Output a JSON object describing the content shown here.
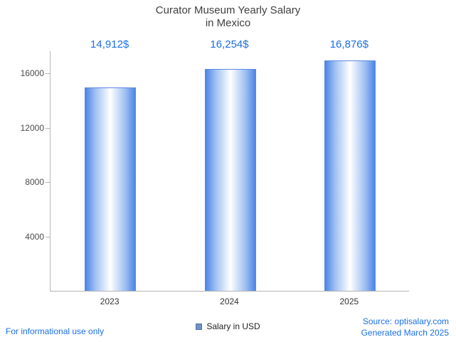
{
  "title": {
    "line1": "Curator Museum Yearly Salary",
    "line2": "in Mexico"
  },
  "chart_data": {
    "type": "bar",
    "title": "Curator Museum Yearly Salary in Mexico",
    "categories": [
      "2023",
      "2024",
      "2025"
    ],
    "values": [
      14912,
      16254,
      16876
    ],
    "value_labels": [
      "14,912$",
      "16,254$",
      "16,876$"
    ],
    "series_name": "Salary in USD",
    "xlabel": "",
    "ylabel": "",
    "ylim": [
      0,
      17600
    ],
    "yticks": [
      4000,
      8000,
      12000,
      16000
    ],
    "grid": false,
    "legend_position": "bottom"
  },
  "legend": {
    "label": "Salary in USD"
  },
  "footer": {
    "disclaimer": "For informational use only",
    "source": "Source: optisalary.com",
    "generated": "Generated March 2025"
  },
  "colors": {
    "accent_text": "#1a6fe8",
    "bar_edge": "#4e85e6",
    "bar_center": "#ffffff",
    "legend_marker": "#7191c9",
    "title_text": "#3f3f3f",
    "axis": "#b5b5b5"
  }
}
